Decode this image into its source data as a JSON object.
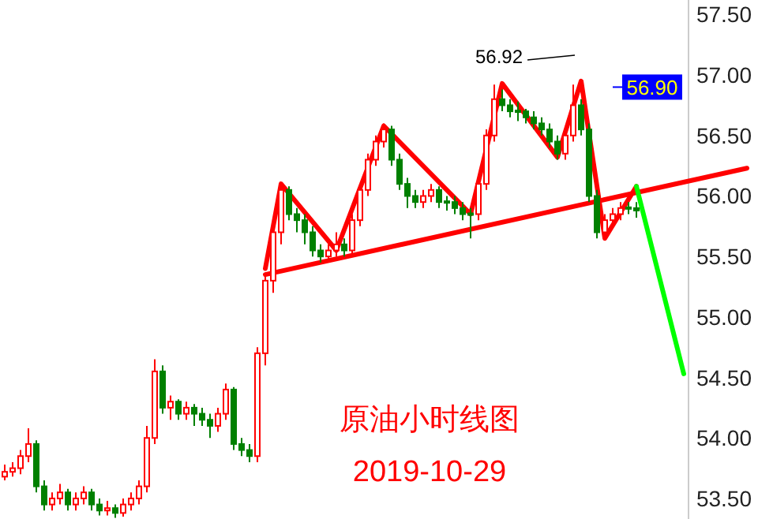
{
  "chart_data": {
    "type": "candlestick",
    "title": "原油小时线图",
    "subtitle": "2019-10-29",
    "categories": [
      null,
      null,
      null,
      null,
      null,
      null,
      null,
      null,
      null,
      null,
      null,
      null,
      null,
      null,
      null,
      null,
      null,
      null,
      null,
      null,
      null,
      null,
      null,
      null,
      null,
      null,
      null,
      null,
      null,
      null,
      null,
      null,
      null,
      null,
      null,
      null,
      null,
      null,
      null,
      null,
      null,
      null,
      null,
      null,
      null,
      null,
      null,
      null,
      null,
      null,
      null,
      null,
      null,
      null,
      null,
      null,
      null,
      null,
      null,
      null,
      null,
      null,
      null,
      null,
      null,
      null,
      null,
      null,
      null,
      null,
      null,
      null,
      null,
      null,
      null,
      null,
      null,
      null,
      null,
      null,
      null,
      null,
      null,
      null,
      null,
      null,
      null,
      null,
      null,
      null,
      null,
      null,
      null,
      null,
      null
    ],
    "colors": [
      "#ff0000",
      "#ff0000",
      "#ff0000",
      "#ff0000",
      "#008000",
      "#008000",
      "#ff0000",
      "#ff0000",
      "#008000",
      "#ff0000",
      "#ff0000",
      "#008000",
      "#008000",
      "#ff0000",
      "#008000",
      "#ff0000",
      "#ff0000",
      "#ff0000",
      "#ff0000",
      "#ff0000",
      "#008000",
      "#ff0000",
      "#008000",
      "#ff0000",
      "#008000",
      "#008000",
      "#008000",
      "#ff0000",
      "#ff0000",
      "#008000",
      "#008000",
      "#008000",
      "#ff0000",
      "#ff0000",
      "#ff0000",
      "#ff0000",
      "#008000",
      "#008000",
      "#008000",
      "#008000",
      "#008000",
      "#ff0000",
      "#ff0000",
      "#008000",
      "#ff0000",
      "#ff0000",
      "#ff0000",
      "#ff0000",
      "#ff0000",
      "#008000",
      "#008000",
      "#008000",
      "#008000",
      "#ff0000",
      "#ff0000",
      "#008000",
      "#008000",
      "#008000",
      "#008000",
      "#008000",
      "#ff0000",
      "#ff0000",
      "#ff0000",
      "#008000",
      "#008000",
      "#008000",
      "#008000",
      "#008000",
      "#008000",
      "#008000",
      "#008000",
      "#ff0000",
      "#ff0000",
      "#008000",
      "#008000",
      "#008000",
      "#ff0000",
      "#ff0000",
      "#ff0000",
      "#008000",
      "#008000",
      null,
      null,
      null,
      null,
      null,
      null,
      null,
      null,
      null,
      null,
      null,
      null,
      null,
      null
    ],
    "ohlc": [
      [
        53.68,
        53.78,
        53.65,
        53.72
      ],
      [
        53.72,
        53.8,
        53.68,
        53.75
      ],
      [
        53.75,
        53.9,
        53.7,
        53.85
      ],
      [
        53.85,
        54.08,
        53.8,
        53.95
      ],
      [
        53.95,
        53.98,
        53.55,
        53.6
      ],
      [
        53.6,
        53.65,
        53.4,
        53.45
      ],
      [
        53.45,
        53.55,
        53.4,
        53.5
      ],
      [
        53.5,
        53.62,
        53.45,
        53.55
      ],
      [
        53.55,
        53.58,
        53.4,
        53.45
      ],
      [
        53.45,
        53.55,
        53.4,
        53.5
      ],
      [
        53.5,
        53.6,
        53.45,
        53.55
      ],
      [
        53.55,
        53.58,
        53.4,
        53.45
      ],
      [
        53.45,
        53.5,
        53.36,
        53.4
      ],
      [
        53.4,
        53.48,
        53.36,
        53.42
      ],
      [
        53.42,
        53.45,
        53.34,
        53.38
      ],
      [
        53.38,
        53.5,
        53.35,
        53.45
      ],
      [
        53.45,
        53.55,
        53.4,
        53.5
      ],
      [
        53.5,
        53.65,
        53.45,
        53.6
      ],
      [
        53.6,
        54.1,
        53.55,
        54.0
      ],
      [
        54.0,
        54.65,
        53.95,
        54.55
      ],
      [
        54.55,
        54.6,
        54.2,
        54.25
      ],
      [
        54.25,
        54.35,
        54.15,
        54.3
      ],
      [
        54.3,
        54.32,
        54.15,
        54.2
      ],
      [
        54.2,
        54.3,
        54.15,
        54.25
      ],
      [
        54.25,
        54.28,
        54.1,
        54.2
      ],
      [
        54.2,
        54.25,
        54.1,
        54.15
      ],
      [
        54.15,
        54.2,
        54.0,
        54.1
      ],
      [
        54.1,
        54.25,
        54.05,
        54.2
      ],
      [
        54.2,
        54.45,
        54.15,
        54.4
      ],
      [
        54.4,
        54.42,
        53.9,
        53.95
      ],
      [
        53.95,
        54.0,
        53.85,
        53.9
      ],
      [
        53.9,
        53.95,
        53.8,
        53.85
      ],
      [
        53.85,
        54.75,
        53.8,
        54.7
      ],
      [
        54.7,
        55.35,
        54.6,
        55.3
      ],
      [
        55.3,
        55.75,
        55.2,
        55.7
      ],
      [
        55.7,
        56.1,
        55.6,
        56.05
      ],
      [
        56.05,
        56.08,
        55.8,
        55.85
      ],
      [
        55.85,
        55.9,
        55.7,
        55.8
      ],
      [
        55.8,
        55.85,
        55.6,
        55.7
      ],
      [
        55.7,
        55.75,
        55.5,
        55.55
      ],
      [
        55.55,
        55.6,
        55.45,
        55.5
      ],
      [
        55.5,
        55.6,
        55.45,
        55.55
      ],
      [
        55.55,
        55.7,
        55.5,
        55.6
      ],
      [
        55.6,
        55.65,
        55.5,
        55.55
      ],
      [
        55.55,
        55.85,
        55.5,
        55.8
      ],
      [
        55.8,
        56.1,
        55.75,
        56.05
      ],
      [
        56.05,
        56.35,
        56.0,
        56.3
      ],
      [
        56.3,
        56.5,
        56.25,
        56.45
      ],
      [
        56.45,
        56.6,
        56.4,
        56.55
      ],
      [
        56.55,
        56.58,
        56.25,
        56.3
      ],
      [
        56.3,
        56.35,
        56.05,
        56.1
      ],
      [
        56.1,
        56.15,
        55.9,
        56.0
      ],
      [
        56.0,
        56.05,
        55.9,
        55.95
      ],
      [
        55.95,
        56.05,
        55.9,
        56.0
      ],
      [
        56.0,
        56.1,
        55.95,
        56.05
      ],
      [
        56.05,
        56.08,
        55.9,
        55.95
      ],
      [
        55.95,
        56.0,
        55.88,
        55.95
      ],
      [
        55.95,
        56.0,
        55.85,
        55.9
      ],
      [
        55.9,
        55.95,
        55.8,
        55.85
      ],
      [
        55.85,
        55.9,
        55.65,
        55.85
      ],
      [
        55.85,
        56.15,
        55.8,
        56.1
      ],
      [
        56.1,
        56.55,
        56.05,
        56.5
      ],
      [
        56.5,
        56.92,
        56.45,
        56.8
      ],
      [
        56.8,
        56.88,
        56.7,
        56.75
      ],
      [
        56.75,
        56.8,
        56.65,
        56.7
      ],
      [
        56.7,
        56.78,
        56.62,
        56.7
      ],
      [
        56.7,
        56.72,
        56.6,
        56.65
      ],
      [
        56.65,
        56.7,
        56.55,
        56.6
      ],
      [
        56.6,
        56.65,
        56.5,
        56.55
      ],
      [
        56.55,
        56.6,
        56.4,
        56.45
      ],
      [
        56.45,
        56.5,
        56.3,
        56.35
      ],
      [
        56.35,
        56.55,
        56.3,
        56.5
      ],
      [
        56.5,
        56.92,
        56.45,
        56.75
      ],
      [
        56.75,
        56.8,
        56.5,
        56.55
      ],
      [
        56.55,
        56.6,
        55.95,
        56.0
      ],
      [
        56.0,
        56.05,
        55.65,
        55.7
      ],
      [
        55.7,
        55.85,
        55.65,
        55.8
      ],
      [
        55.8,
        55.9,
        55.75,
        55.85
      ],
      [
        55.85,
        55.95,
        55.8,
        55.9
      ],
      [
        55.9,
        55.95,
        55.85,
        55.9
      ],
      [
        55.9,
        55.95,
        55.82,
        55.88
      ],
      null,
      null,
      null,
      null,
      null,
      null,
      null,
      null,
      null,
      null,
      null,
      null,
      null,
      null
    ],
    "series": [
      {
        "type": "line",
        "color": "#ff0000",
        "values": [
          null,
          null,
          null,
          null,
          null,
          null,
          null,
          null,
          null,
          null,
          null,
          null,
          null,
          null,
          null,
          null,
          null,
          null,
          null,
          null,
          null,
          null,
          null,
          null,
          null,
          null,
          null,
          null,
          null,
          null,
          null,
          null,
          null,
          55.4,
          null,
          56.1,
          null,
          null,
          null,
          null,
          null,
          null,
          55.55,
          null,
          null,
          null,
          null,
          null,
          56.58,
          null,
          null,
          null,
          null,
          null,
          null,
          null,
          null,
          null,
          null,
          55.85,
          null,
          null,
          null,
          56.93,
          null,
          null,
          null,
          null,
          null,
          null,
          56.32,
          null,
          null,
          56.95,
          null,
          null,
          55.65,
          null,
          null,
          null,
          56.08,
          null,
          null,
          null,
          null,
          null,
          null,
          null,
          null,
          null,
          null,
          null,
          null,
          null,
          null
        ]
      },
      {
        "type": "line",
        "color": "#ff0000",
        "values": [
          null,
          null,
          null,
          null,
          null,
          null,
          null,
          null,
          null,
          null,
          null,
          null,
          null,
          null,
          null,
          null,
          null,
          null,
          null,
          null,
          null,
          null,
          null,
          null,
          null,
          null,
          null,
          null,
          null,
          null,
          null,
          null,
          null,
          55.35,
          null,
          null,
          null,
          null,
          null,
          null,
          null,
          null,
          null,
          null,
          null,
          null,
          null,
          null,
          null,
          null,
          null,
          null,
          null,
          null,
          null,
          null,
          null,
          null,
          null,
          null,
          null,
          null,
          null,
          null,
          null,
          null,
          null,
          null,
          null,
          null,
          null,
          null,
          null,
          null,
          null,
          null,
          null,
          null,
          null,
          null,
          null,
          null,
          null,
          null,
          null,
          null,
          null,
          null,
          null,
          null,
          null,
          null,
          null,
          null,
          56.23
        ]
      },
      {
        "type": "line",
        "color": "#00ff00",
        "values": [
          null,
          null,
          null,
          null,
          null,
          null,
          null,
          null,
          null,
          null,
          null,
          null,
          null,
          null,
          null,
          null,
          null,
          null,
          null,
          null,
          null,
          null,
          null,
          null,
          null,
          null,
          null,
          null,
          null,
          null,
          null,
          null,
          null,
          null,
          null,
          null,
          null,
          null,
          null,
          null,
          null,
          null,
          null,
          null,
          null,
          null,
          null,
          null,
          null,
          null,
          null,
          null,
          null,
          null,
          null,
          null,
          null,
          null,
          null,
          null,
          null,
          null,
          null,
          null,
          null,
          null,
          null,
          null,
          null,
          null,
          null,
          null,
          null,
          null,
          null,
          null,
          null,
          null,
          null,
          null,
          56.08,
          null,
          null,
          null,
          null,
          null,
          54.53,
          null,
          null,
          null,
          null,
          null,
          null,
          null,
          null
        ]
      }
    ],
    "ylim": [
      53.33,
      57.62
    ],
    "yticks": [
      {
        "value": 53.5,
        "label": "53.50"
      },
      {
        "value": 54,
        "label": "54.00"
      },
      {
        "value": 54.5,
        "label": "54.50"
      },
      {
        "value": 55,
        "label": "55.00"
      },
      {
        "value": 55.5,
        "label": "55.50"
      },
      {
        "value": 56,
        "label": "56.00"
      },
      {
        "value": 56.5,
        "label": "56.50"
      },
      {
        "value": 57,
        "label": "57.00"
      },
      {
        "value": 57.5,
        "label": "57.50"
      }
    ],
    "ref_lines": [
      {
        "axis": "y",
        "value": 56.9,
        "label": "56.90",
        "color": "#0000ff"
      }
    ],
    "annotations": [
      "56.92"
    ],
    "grid": false
  }
}
